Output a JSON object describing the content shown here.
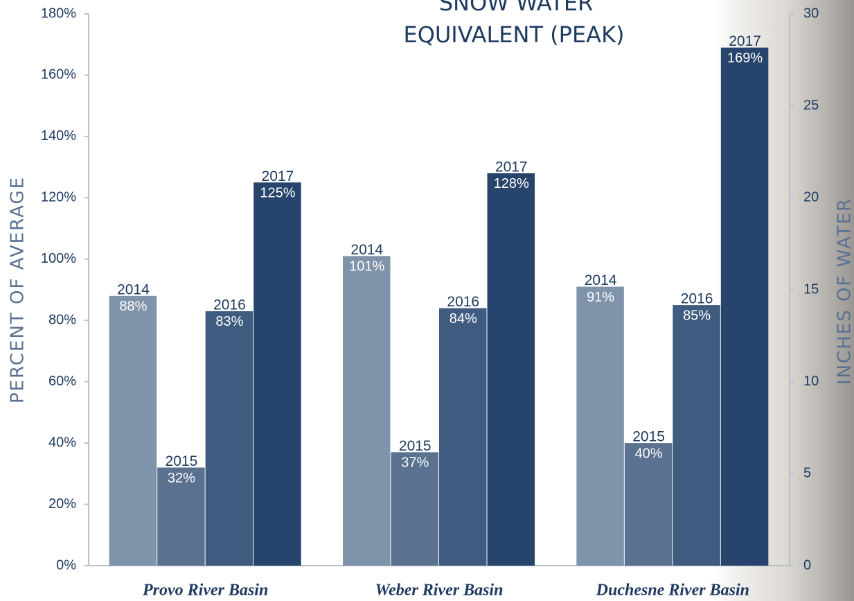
{
  "chart_data": {
    "type": "bar",
    "title": [
      "SNOW WATER",
      "EQUIVALENT (PEAK)"
    ],
    "ylabel": "PERCENT OF AVERAGE",
    "y2label": "INCHES OF WATER",
    "categories": [
      "Provo River Basin",
      "Weber River Basin",
      "Duchesne River Basin"
    ],
    "series": [
      {
        "name": "2014",
        "color": "#7f93aa",
        "values": [
          88,
          101,
          91
        ],
        "value_labels": [
          "88%",
          "101%",
          "91%"
        ]
      },
      {
        "name": "2015",
        "color": "#5a7190",
        "values": [
          32,
          37,
          40
        ],
        "value_labels": [
          "32%",
          "37%",
          "40%"
        ]
      },
      {
        "name": "2016",
        "color": "#3f5c80",
        "values": [
          83,
          84,
          85
        ],
        "value_labels": [
          "83%",
          "84%",
          "85%"
        ]
      },
      {
        "name": "2017",
        "color": "#26446c",
        "values": [
          125,
          128,
          169
        ],
        "value_labels": [
          "125%",
          "128%",
          "169%"
        ]
      }
    ],
    "ylim": [
      0,
      180
    ],
    "yticks": [
      {
        "value": 0,
        "label": "0%"
      },
      {
        "value": 20,
        "label": "20%"
      },
      {
        "value": 40,
        "label": "40%"
      },
      {
        "value": 60,
        "label": "60%"
      },
      {
        "value": 80,
        "label": "80%"
      },
      {
        "value": 100,
        "label": "100%"
      },
      {
        "value": 120,
        "label": "120%"
      },
      {
        "value": 140,
        "label": "140%"
      },
      {
        "value": 160,
        "label": "160%"
      },
      {
        "value": 180,
        "label": "180%"
      }
    ],
    "y2lim": [
      0,
      30
    ],
    "y2ticks": [
      0,
      5,
      10,
      15,
      20,
      25,
      30
    ],
    "grid": false
  }
}
